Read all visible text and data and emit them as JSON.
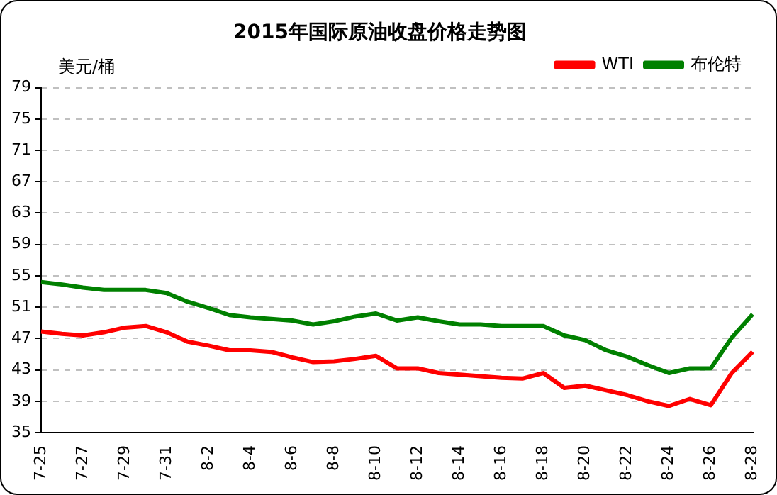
{
  "chart_data": {
    "type": "line",
    "title": "2015年国际原油收盘价格走势图",
    "ylabel": "美元/桶",
    "categories": [
      "7-25",
      null,
      "7-27",
      null,
      "7-29",
      null,
      "7-31",
      null,
      "8-2",
      null,
      "8-4",
      null,
      "8-6",
      null,
      "8-8",
      null,
      "8-10",
      null,
      "8-12",
      null,
      "8-14",
      null,
      "8-16",
      null,
      "8-18",
      null,
      "8-20",
      null,
      "8-22",
      null,
      "8-24",
      null,
      "8-26",
      null,
      "8-28"
    ],
    "series": [
      {
        "name": "WTI",
        "color": "#ff0000",
        "values": [
          47.9,
          47.6,
          47.4,
          47.8,
          48.4,
          48.6,
          47.8,
          46.6,
          46.1,
          45.5,
          45.5,
          45.3,
          44.6,
          44.0,
          44.1,
          44.4,
          44.8,
          43.2,
          43.2,
          42.6,
          42.4,
          42.2,
          42.0,
          41.9,
          42.6,
          40.7,
          41.0,
          40.4,
          39.8,
          39.0,
          38.4,
          39.3,
          38.5,
          42.6,
          45.3
        ]
      },
      {
        "name": "布伦特",
        "color": "#008000",
        "values": [
          54.2,
          53.9,
          53.5,
          53.2,
          53.2,
          53.2,
          52.8,
          51.7,
          50.9,
          50.0,
          49.7,
          49.5,
          49.3,
          48.8,
          49.2,
          49.8,
          50.2,
          49.3,
          49.7,
          49.2,
          48.8,
          48.8,
          48.6,
          48.6,
          48.6,
          47.4,
          46.8,
          45.5,
          44.7,
          43.6,
          42.6,
          43.2,
          43.2,
          47.1,
          50.1
        ]
      }
    ],
    "ylim": [
      35,
      79
    ],
    "yticks": [
      35,
      39,
      43,
      47,
      51,
      55,
      59,
      63,
      67,
      71,
      75,
      79
    ],
    "grid": "y",
    "legend": "top right",
    "marker": "none",
    "line_style": "solid"
  }
}
